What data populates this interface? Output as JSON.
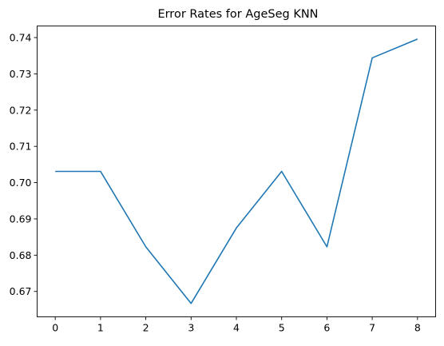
{
  "chart_data": {
    "type": "line",
    "title": "Error Rates for AgeSeg KNN",
    "xlabel": "",
    "ylabel": "",
    "x": [
      0,
      1,
      2,
      3,
      4,
      5,
      6,
      7,
      8
    ],
    "series": [
      {
        "values": [
          0.7031,
          0.7031,
          0.6823,
          0.6667,
          0.6875,
          0.7031,
          0.6823,
          0.7344,
          0.7396
        ]
      }
    ],
    "xlim": [
      -0.4,
      8.4
    ],
    "ylim": [
      0.663,
      0.7432
    ],
    "xticks": [
      "0",
      "1",
      "2",
      "3",
      "4",
      "5",
      "6",
      "7",
      "8"
    ],
    "yticks": [
      "0.67",
      "0.68",
      "0.69",
      "0.70",
      "0.71",
      "0.72",
      "0.73",
      "0.74"
    ],
    "grid": false,
    "line_color": "#1f77b4"
  }
}
